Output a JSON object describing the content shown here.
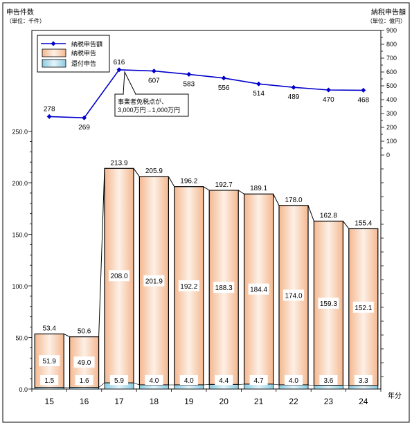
{
  "chart_data": {
    "type": "bar",
    "left_axis_title": "申告件数",
    "left_axis_unit": "（単位：千件）",
    "right_axis_title": "納税申告額",
    "right_axis_unit": "（単位：億円）",
    "x_axis_unit": "年分",
    "categories": [
      "15",
      "16",
      "17",
      "18",
      "19",
      "20",
      "21",
      "22",
      "23",
      "24"
    ],
    "left_ticks": [
      "0.0",
      "50.0",
      "100.0",
      "150.0",
      "200.0",
      "250.0"
    ],
    "right_ticks": [
      "0",
      "100",
      "200",
      "300",
      "400",
      "500",
      "600",
      "700",
      "800",
      "900"
    ],
    "ylim_left": [
      0,
      250
    ],
    "ylim_right": [
      0,
      900
    ],
    "series": [
      {
        "name": "納税申告額",
        "type": "line",
        "axis": "right",
        "color": "#0000cc",
        "values": [
          278,
          269,
          616,
          607,
          583,
          556,
          514,
          489,
          470,
          468
        ],
        "labels": [
          "278",
          "269",
          "616",
          "607",
          "583",
          "556",
          "514",
          "489",
          "470",
          "468"
        ]
      },
      {
        "name": "納税申告",
        "type": "bar",
        "axis": "left",
        "color": "#f6c8a8",
        "values": [
          51.9,
          49.0,
          208.0,
          201.9,
          192.2,
          188.3,
          184.4,
          174.0,
          159.3,
          152.1
        ],
        "labels": [
          "51.9",
          "49.0",
          "208.0",
          "201.9",
          "192.2",
          "188.3",
          "184.4",
          "174.0",
          "159.3",
          "152.1"
        ]
      },
      {
        "name": "還付申告",
        "type": "bar",
        "axis": "left",
        "color": "#a8d8e8",
        "values": [
          1.5,
          1.6,
          5.9,
          4.0,
          4.0,
          4.4,
          4.7,
          4.0,
          3.6,
          3.3
        ],
        "labels": [
          "1.5",
          "1.6",
          "5.9",
          "4.0",
          "4.0",
          "4.4",
          "4.7",
          "4.0",
          "3.6",
          "3.3"
        ]
      }
    ],
    "totals": [
      53.4,
      50.6,
      213.9,
      205.9,
      196.2,
      192.7,
      189.1,
      178.0,
      162.8,
      155.4
    ],
    "total_labels": [
      "53.4",
      "50.6",
      "213.9",
      "205.9",
      "196.2",
      "192.7",
      "189.1",
      "178.0",
      "162.8",
      "155.4"
    ],
    "annotation": {
      "lines": [
        "事業者免税点が、",
        "3,000万円→1,000万円"
      ]
    },
    "legend": {
      "position": "top-left"
    },
    "grid": false
  }
}
